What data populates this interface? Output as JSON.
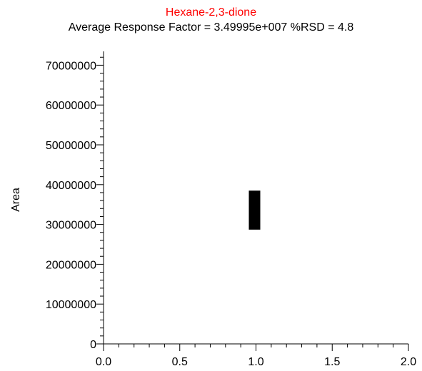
{
  "chart_data": {
    "type": "scatter",
    "title": "Hexane-2,3-dione",
    "subtitle": "Average Response Factor = 3.49995e+007   %RSD = 4.8",
    "xlabel": "",
    "ylabel": "Area",
    "xlim": [
      0.0,
      2.0
    ],
    "ylim": [
      0,
      74000000
    ],
    "x_ticks": [
      "0.0",
      "0.5",
      "1.0",
      "1.5",
      "2.0"
    ],
    "y_ticks": [
      "0",
      "10000000",
      "20000000",
      "30000000",
      "40000000",
      "50000000",
      "60000000",
      "70000000"
    ],
    "grid": false,
    "points": [
      {
        "x": 1.0,
        "y_low": 28700000,
        "y_high": 38500000
      }
    ],
    "colors": {
      "title": "#ff0000",
      "axis": "#000000",
      "marker": "#000000"
    }
  }
}
